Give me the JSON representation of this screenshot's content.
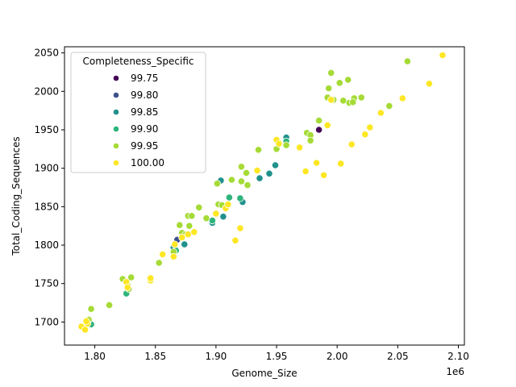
{
  "chart_data": {
    "type": "scatter",
    "xlabel": "Genome_Size",
    "ylabel": "Total_Coding_Sequences",
    "x_offset_label": "1e6",
    "xlim": [
      1.775,
      2.105
    ],
    "ylim": [
      1670,
      2058
    ],
    "x_ticks": [
      "1.80",
      "1.85",
      "1.90",
      "1.95",
      "2.00",
      "2.05",
      "2.10"
    ],
    "y_ticks": [
      "1700",
      "1750",
      "1800",
      "1850",
      "1900",
      "1950",
      "2000",
      "2050"
    ],
    "grid": false,
    "legend": {
      "title": "Completeness_Specific",
      "placement": "upper-left",
      "entries": [
        {
          "label": "99.75",
          "color": "#440154"
        },
        {
          "label": "99.80",
          "color": "#3b528b"
        },
        {
          "label": "99.85",
          "color": "#21918c"
        },
        {
          "label": "99.90",
          "color": "#2fb47c"
        },
        {
          "label": "99.95",
          "color": "#a5db36"
        },
        {
          "label": "100.00",
          "color": "#fde725"
        }
      ]
    },
    "series": [
      {
        "name": "99.75",
        "color": "#440154",
        "points": [
          [
            1.985,
            1950
          ]
        ]
      },
      {
        "name": "99.80",
        "color": "#3b528b",
        "points": [
          [
            1.868,
            1807
          ]
        ]
      },
      {
        "name": "99.85",
        "color": "#21918c",
        "points": [
          [
            1.874,
            1801
          ],
          [
            1.897,
            1829
          ],
          [
            1.904,
            1884
          ],
          [
            1.906,
            1837
          ],
          [
            1.922,
            1856
          ],
          [
            1.936,
            1887
          ],
          [
            1.944,
            1893
          ],
          [
            1.949,
            1904
          ],
          [
            1.958,
            1940
          ],
          [
            1.865,
            1797
          ]
        ]
      },
      {
        "name": "99.90",
        "color": "#2fb47c",
        "points": [
          [
            1.797,
            1697
          ],
          [
            1.826,
            1737
          ],
          [
            1.867,
            1793
          ],
          [
            1.897,
            1832
          ],
          [
            1.911,
            1862
          ],
          [
            1.92,
            1861
          ],
          [
            1.958,
            1935
          ]
        ]
      },
      {
        "name": "99.95",
        "color": "#a5db36",
        "points": [
          [
            1.791,
            1693
          ],
          [
            1.795,
            1703
          ],
          [
            1.797,
            1717
          ],
          [
            1.812,
            1722
          ],
          [
            1.823,
            1756
          ],
          [
            1.827,
            1748
          ],
          [
            1.83,
            1758
          ],
          [
            1.828,
            1743
          ],
          [
            1.853,
            1777
          ],
          [
            1.865,
            1791
          ],
          [
            1.87,
            1826
          ],
          [
            1.872,
            1816
          ],
          [
            1.875,
            1814
          ],
          [
            1.877,
            1838
          ],
          [
            1.88,
            1838
          ],
          [
            1.878,
            1825
          ],
          [
            1.886,
            1849
          ],
          [
            1.892,
            1835
          ],
          [
            1.901,
            1880
          ],
          [
            1.902,
            1853
          ],
          [
            1.905,
            1852
          ],
          [
            1.913,
            1885
          ],
          [
            1.921,
            1883
          ],
          [
            1.921,
            1902
          ],
          [
            1.925,
            1894
          ],
          [
            1.926,
            1878
          ],
          [
            1.935,
            1924
          ],
          [
            1.95,
            1925
          ],
          [
            1.951,
            1935
          ],
          [
            1.958,
            1930
          ],
          [
            1.975,
            1946
          ],
          [
            1.978,
            1943
          ],
          [
            1.978,
            1936
          ],
          [
            1.985,
            1962
          ],
          [
            1.992,
            1992
          ],
          [
            1.993,
            2004
          ],
          [
            1.995,
            2024
          ],
          [
            1.997,
            1989
          ],
          [
            2.002,
            2011
          ],
          [
            2.005,
            1988
          ],
          [
            2.009,
            2015
          ],
          [
            2.01,
            1985
          ],
          [
            2.014,
            1991
          ],
          [
            2.02,
            1992
          ],
          [
            2.013,
            1986
          ],
          [
            2.043,
            1981
          ],
          [
            2.058,
            2039
          ]
        ]
      },
      {
        "name": "100.00",
        "color": "#fde725",
        "points": [
          [
            1.789,
            1694
          ],
          [
            1.792,
            1690
          ],
          [
            1.794,
            1698
          ],
          [
            1.793,
            1701
          ],
          [
            1.826,
            1752
          ],
          [
            1.827,
            1745
          ],
          [
            1.846,
            1754
          ],
          [
            1.846,
            1757
          ],
          [
            1.856,
            1788
          ],
          [
            1.865,
            1785
          ],
          [
            1.866,
            1801
          ],
          [
            1.872,
            1810
          ],
          [
            1.877,
            1814
          ],
          [
            1.882,
            1817
          ],
          [
            1.9,
            1841
          ],
          [
            1.908,
            1848
          ],
          [
            1.91,
            1853
          ],
          [
            1.916,
            1806
          ],
          [
            1.92,
            1822
          ],
          [
            1.934,
            1897
          ],
          [
            1.95,
            1937
          ],
          [
            1.952,
            1932
          ],
          [
            1.969,
            1927
          ],
          [
            1.974,
            1896
          ],
          [
            1.983,
            1907
          ],
          [
            1.989,
            1891
          ],
          [
            1.992,
            1956
          ],
          [
            1.995,
            1989
          ],
          [
            2.003,
            1906
          ],
          [
            2.012,
            1931
          ],
          [
            2.023,
            1944
          ],
          [
            2.027,
            1953
          ],
          [
            2.036,
            1972
          ],
          [
            2.054,
            1991
          ],
          [
            2.076,
            2010
          ],
          [
            2.087,
            2047
          ]
        ]
      }
    ]
  }
}
